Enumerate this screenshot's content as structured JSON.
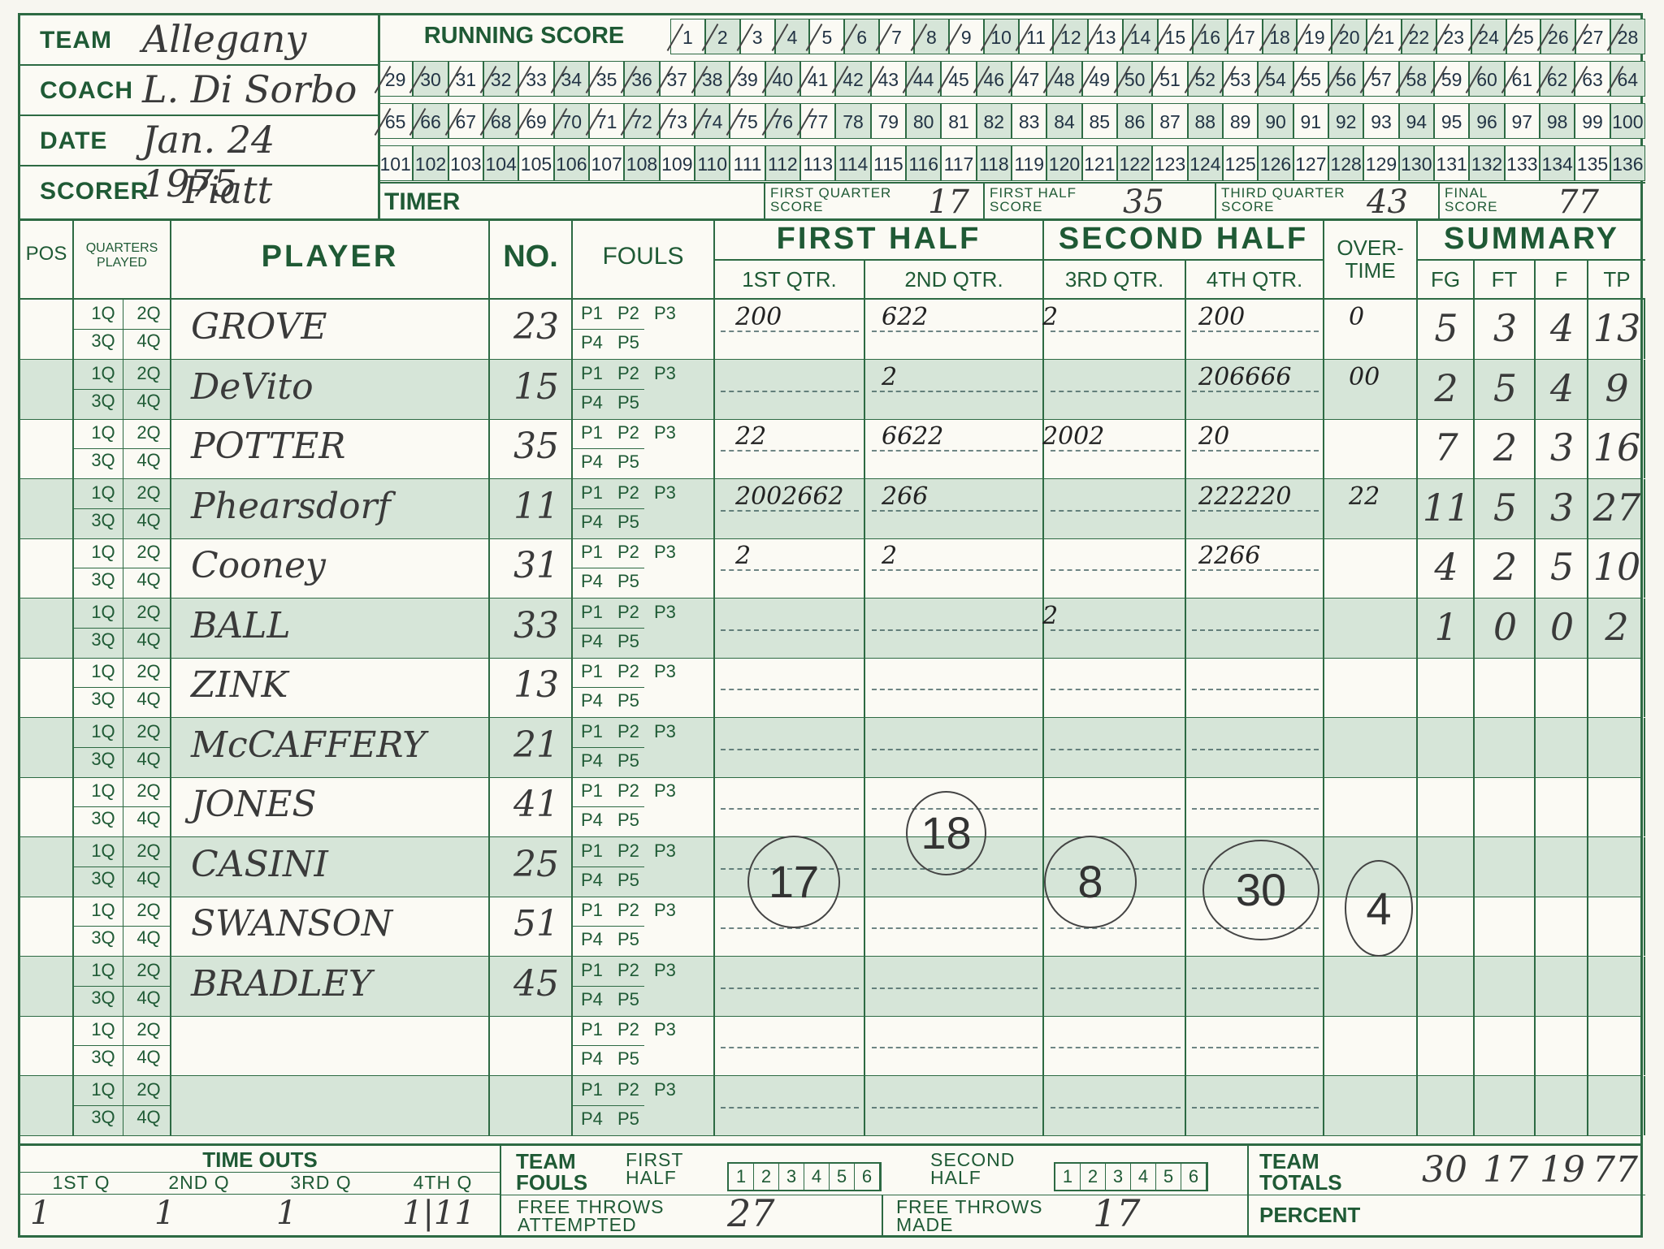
{
  "header": {
    "team_label": "TEAM",
    "team": "Allegany",
    "coach_label": "COACH",
    "coach": "L. Di Sorbo",
    "date_label": "DATE",
    "date": "Jan. 24 1975",
    "scorer_label": "SCORER",
    "scorer": "Piatt",
    "running_score_label": "RUNNING SCORE",
    "timer_label": "TIMER",
    "first_quarter_label": "FIRST QUARTER SCORE",
    "first_quarter_score": "17",
    "first_half_label": "FIRST HALF SCORE",
    "first_half_score": "35",
    "third_quarter_label": "THIRD QUARTER SCORE",
    "third_quarter_score": "43",
    "final_label": "FINAL SCORE",
    "final_score": "77"
  },
  "columns": {
    "pos": "POS",
    "quarters_played": "QUARTERS PLAYED",
    "player": "PLAYER",
    "no": "NO.",
    "fouls": "FOULS",
    "first_half": "FIRST HALF",
    "second_half": "SECOND HALF",
    "q1": "1ST QTR.",
    "q2": "2ND QTR.",
    "q3": "3RD QTR.",
    "q4": "4TH QTR.",
    "overtime": "OVER- TIME",
    "summary": "SUMMARY",
    "fg": "FG",
    "ft": "FT",
    "f": "F",
    "tp": "TP"
  },
  "quarter_labels": [
    "1Q",
    "2Q",
    "3Q",
    "4Q"
  ],
  "foul_labels": [
    "P1",
    "P2",
    "P3",
    "P4",
    "P5"
  ],
  "players": [
    {
      "name": "GROVE",
      "no": "23",
      "q1": "200",
      "q2": "622",
      "q3": "2",
      "q4": "200",
      "ot": "0",
      "fg": "5",
      "ft": "3",
      "f": "4",
      "tp": "13"
    },
    {
      "name": "DeVito",
      "no": "15",
      "q1": "",
      "q2": "2",
      "q3": "",
      "q4": "206666",
      "ot": "00",
      "fg": "2",
      "ft": "5",
      "f": "4",
      "tp": "9"
    },
    {
      "name": "POTTER",
      "no": "35",
      "q1": "22",
      "q2": "6622",
      "q3": "2002",
      "q4": "20",
      "ot": "",
      "fg": "7",
      "ft": "2",
      "f": "3",
      "tp": "16"
    },
    {
      "name": "Phearsdorf",
      "no": "11",
      "q1": "2002662",
      "q2": "266",
      "q3": "",
      "q4": "222220",
      "ot": "22",
      "fg": "11",
      "ft": "5",
      "f": "3",
      "tp": "27"
    },
    {
      "name": "Cooney",
      "no": "31",
      "q1": "2",
      "q2": "2",
      "q3": "",
      "q4": "2266",
      "ot": "",
      "fg": "4",
      "ft": "2",
      "f": "5",
      "tp": "10"
    },
    {
      "name": "BALL",
      "no": "33",
      "q1": "",
      "q2": "",
      "q3": "2",
      "q4": "",
      "ot": "",
      "fg": "1",
      "ft": "0",
      "f": "0",
      "tp": "2"
    },
    {
      "name": "ZINK",
      "no": "13",
      "q1": "",
      "q2": "",
      "q3": "",
      "q4": "",
      "ot": "",
      "fg": "",
      "ft": "",
      "f": "",
      "tp": ""
    },
    {
      "name": "McCAFFERY",
      "no": "21",
      "q1": "",
      "q2": "",
      "q3": "",
      "q4": "",
      "ot": "",
      "fg": "",
      "ft": "",
      "f": "",
      "tp": ""
    },
    {
      "name": "JONES",
      "no": "41",
      "q1": "",
      "q2": "",
      "q3": "",
      "q4": "",
      "ot": "",
      "fg": "",
      "ft": "",
      "f": "",
      "tp": ""
    },
    {
      "name": "CASINI",
      "no": "25",
      "q1": "",
      "q2": "",
      "q3": "",
      "q4": "",
      "ot": "",
      "fg": "",
      "ft": "",
      "f": "",
      "tp": ""
    },
    {
      "name": "SWANSON",
      "no": "51",
      "q1": "",
      "q2": "",
      "q3": "",
      "q4": "",
      "ot": "",
      "fg": "",
      "ft": "",
      "f": "",
      "tp": ""
    },
    {
      "name": "BRADLEY",
      "no": "45",
      "q1": "",
      "q2": "",
      "q3": "",
      "q4": "",
      "ot": "",
      "fg": "",
      "ft": "",
      "f": "",
      "tp": ""
    },
    {
      "name": "",
      "no": "",
      "q1": "",
      "q2": "",
      "q3": "",
      "q4": "",
      "ot": "",
      "fg": "",
      "ft": "",
      "f": "",
      "tp": ""
    },
    {
      "name": "",
      "no": "",
      "q1": "",
      "q2": "",
      "q3": "",
      "q4": "",
      "ot": "",
      "fg": "",
      "ft": "",
      "f": "",
      "tp": ""
    }
  ],
  "quarter_totals": {
    "q1": "17",
    "q2": "18",
    "q3": "8",
    "q4": "30",
    "ot": "4"
  },
  "footer": {
    "time_outs_label": "TIME OUTS",
    "to_q1_label": "1ST Q",
    "to_q2_label": "2ND Q",
    "to_q3_label": "3RD Q",
    "to_q4_label": "4TH Q",
    "to_q1": "1",
    "to_q2": "1",
    "to_q3": "1",
    "to_q4": "1|11",
    "team_fouls_label": "TEAM FOULS",
    "first_half_label": "FIRST HALF",
    "second_half_label": "SECOND HALF",
    "ft_attempted_label": "FREE THROWS ATTEMPTED",
    "ft_attempted": "27",
    "ft_made_label": "FREE THROWS MADE",
    "ft_made": "17",
    "team_totals_label": "TEAM TOTALS",
    "tt_fg": "30",
    "tt_ft": "17",
    "tt_f": "19",
    "tt_tp": "77",
    "percent_label": "PERCENT",
    "foul_boxes": [
      "1",
      "2",
      "3",
      "4",
      "5",
      "6"
    ]
  },
  "colors": {
    "green": "#2d6a43",
    "band": "#d6e5d8",
    "paper": "#fbfaf4"
  }
}
